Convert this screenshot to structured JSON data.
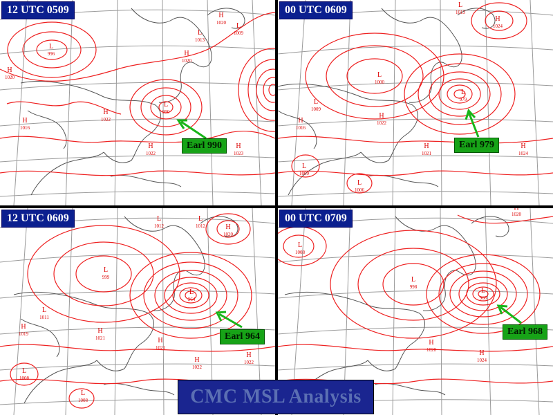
{
  "title": "CMC MSL Analysis",
  "colors": {
    "isobar": "#ee2020",
    "grid": "#9a9a9a",
    "coast": "#555555",
    "tag_bg": "#0b1f8f",
    "callout_bg": "#17a317",
    "arrow": "#19b519",
    "banner_bg": "#1a2590",
    "banner_text": "#5b6fb3"
  },
  "panels": [
    {
      "id": "p1",
      "time_label": "12 UTC 0509",
      "storm": {
        "label": "Earl 990",
        "name": "Earl",
        "pressure_hpa": 990
      },
      "pressure_centers": [
        {
          "type": "L",
          "value": "996"
        },
        {
          "type": "L",
          "value": "1013"
        },
        {
          "type": "L",
          "value": "990"
        },
        {
          "type": "L",
          "value": "1009"
        },
        {
          "type": "H",
          "value": "1020"
        },
        {
          "type": "H",
          "value": "1020"
        },
        {
          "type": "H",
          "value": "1020"
        },
        {
          "type": "H",
          "value": "1022"
        },
        {
          "type": "H",
          "value": "1016"
        },
        {
          "type": "H",
          "value": "1022"
        },
        {
          "type": "H",
          "value": "1023"
        }
      ]
    },
    {
      "id": "p2",
      "time_label": "00 UTC 0609",
      "storm": {
        "label": "Earl 979",
        "name": "Earl",
        "pressure_hpa": 979
      },
      "pressure_centers": [
        {
          "type": "L",
          "value": "1013"
        },
        {
          "type": "L",
          "value": "1009"
        },
        {
          "type": "L",
          "value": "1000"
        },
        {
          "type": "L",
          "value": "979"
        },
        {
          "type": "L",
          "value": "1009"
        },
        {
          "type": "L",
          "value": "1006"
        },
        {
          "type": "H",
          "value": "1024"
        },
        {
          "type": "H",
          "value": "1022"
        },
        {
          "type": "H",
          "value": "1016"
        },
        {
          "type": "H",
          "value": "1021"
        },
        {
          "type": "H",
          "value": "1024"
        }
      ]
    },
    {
      "id": "p3",
      "time_label": "12 UTC 0609",
      "storm": {
        "label": "Earl 964",
        "name": "Earl",
        "pressure_hpa": 964
      },
      "pressure_centers": [
        {
          "type": "L",
          "value": "1012"
        },
        {
          "type": "L",
          "value": "1012"
        },
        {
          "type": "L",
          "value": "999"
        },
        {
          "type": "L",
          "value": "964"
        },
        {
          "type": "L",
          "value": "1011"
        },
        {
          "type": "L",
          "value": "1008"
        },
        {
          "type": "L",
          "value": "1008"
        },
        {
          "type": "H",
          "value": "1020"
        },
        {
          "type": "H",
          "value": "1019"
        },
        {
          "type": "H",
          "value": "1021"
        },
        {
          "type": "H",
          "value": "1021"
        },
        {
          "type": "H",
          "value": "1022"
        },
        {
          "type": "H",
          "value": "1022"
        }
      ]
    },
    {
      "id": "p4",
      "time_label": "00 UTC 0709",
      "storm": {
        "label": "Earl 968",
        "name": "Earl",
        "pressure_hpa": 968
      },
      "pressure_centers": [
        {
          "type": "L",
          "value": "998"
        },
        {
          "type": "L",
          "value": "968"
        },
        {
          "type": "L",
          "value": "1008"
        },
        {
          "type": "H",
          "value": "1020"
        },
        {
          "type": "H",
          "value": "1020"
        },
        {
          "type": "H",
          "value": "1024"
        }
      ]
    }
  ]
}
